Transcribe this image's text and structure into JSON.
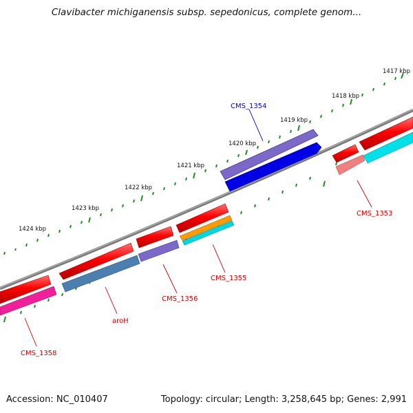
{
  "title": "Clavibacter michiganensis subsp. sepedonicus, complete genom...",
  "accession": "Accession: NC_010407",
  "summary": "Topology: circular; Length: 3,258,645 bp; Genes: 2,991",
  "scale_labels": [
    "1417 kbp",
    "1418 kbp",
    "1419 kbp",
    "1420 kbp",
    "1421 kbp",
    "1422 kbp",
    "1423 kbp",
    "1424 kbp"
  ],
  "gene_labels": {
    "cms1354": "CMS_1354",
    "cms1353": "CMS_1353",
    "cms1355": "CMS_1355",
    "cms1356": "CMS_1356",
    "aroh": "aroH",
    "cms1358": "CMS_1358"
  },
  "colors": {
    "cds": "#ff0000",
    "cds_light": "#f08080",
    "gene_blue": "#0000e6",
    "gene_purple": "#7b68c8",
    "gene_steel": "#4a7fb0",
    "gene_magenta": "#f0209a",
    "gene_cyan": "#00e0e8",
    "gene_orange": "#ff9a00",
    "backbone": "#808080",
    "ticks": "#1e8c1e",
    "label_blue": "#0000cc",
    "label_red": "#cc0000"
  }
}
